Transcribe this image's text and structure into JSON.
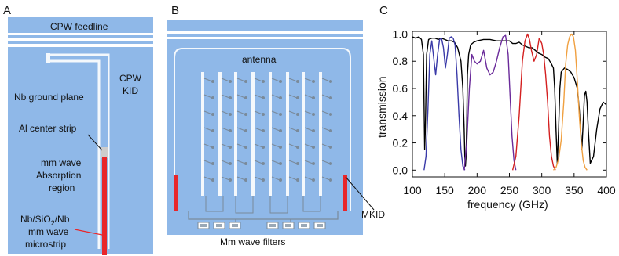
{
  "panels": {
    "a": {
      "letter": "A",
      "feedline": "CPW feedline",
      "cpw_kid_line1": "CPW",
      "cpw_kid_line2": "KID",
      "ground_plane": "Nb ground plane",
      "center_strip": "Al center strip",
      "absorption_line1": "mm wave",
      "absorption_line2": "Absorption",
      "absorption_line3": "region",
      "microstrip_line1": "Nb/SiO",
      "microstrip_sub": "2",
      "microstrip_line1_end": "/Nb",
      "microstrip_line2": "mm wave",
      "microstrip_line3": "microstrip"
    },
    "b": {
      "letter": "B",
      "antenna": "antenna",
      "mkid": "MKID",
      "filters": "Mm wave filters"
    },
    "c": {
      "letter": "C"
    }
  },
  "colors": {
    "substrate": "#8fb8e8",
    "metal_light": "#a9c9ef",
    "trace": "#f4f8fc",
    "strip_red": "#e8262a",
    "blue_band": "#3a3aa8",
    "purple_band": "#6a2a9a",
    "red_band": "#d42020",
    "orange_band": "#f0a040",
    "atm": "#000000"
  },
  "chart_data": {
    "type": "line",
    "xlabel": "frequency (GHz)",
    "ylabel": "transmission",
    "xlim": [
      100,
      400
    ],
    "ylim": [
      -0.05,
      1.02
    ],
    "xticks": [
      100,
      150,
      200,
      250,
      300,
      350,
      400
    ],
    "yticks": [
      0.0,
      0.2,
      0.4,
      0.6,
      0.8,
      1.0
    ],
    "ytick_labels": [
      "0.0",
      "0.2",
      "0.4",
      "0.6",
      "0.8",
      "1.0"
    ],
    "grid": false,
    "series": [
      {
        "color": "#000000",
        "x": [
          100,
          105,
          110,
          114,
          117,
          118,
          119,
          120,
          122,
          125,
          130,
          135,
          140,
          145,
          150,
          155,
          160,
          165,
          170,
          175,
          178,
          180,
          181,
          182,
          183,
          184,
          185,
          187,
          190,
          195,
          200,
          210,
          220,
          230,
          240,
          250,
          255,
          260,
          265,
          270,
          275,
          280,
          285,
          290,
          295,
          300,
          305,
          310,
          315,
          318,
          320,
          322,
          324,
          326,
          328,
          330,
          335,
          340,
          345,
          350,
          355,
          358,
          360,
          362,
          364,
          366,
          368,
          370,
          372,
          375,
          380,
          385,
          390,
          395,
          400
        ],
        "y": [
          0.98,
          0.97,
          0.98,
          0.96,
          0.85,
          0.5,
          0.15,
          0.3,
          0.85,
          0.96,
          0.97,
          0.97,
          0.96,
          0.97,
          0.96,
          0.95,
          0.95,
          0.94,
          0.9,
          0.8,
          0.6,
          0.3,
          0.1,
          0.03,
          0.1,
          0.35,
          0.7,
          0.85,
          0.92,
          0.94,
          0.95,
          0.96,
          0.96,
          0.95,
          0.95,
          0.95,
          0.93,
          0.93,
          0.94,
          0.92,
          0.91,
          0.9,
          0.9,
          0.88,
          0.86,
          0.85,
          0.83,
          0.82,
          0.78,
          0.75,
          0.6,
          0.3,
          0.05,
          0.3,
          0.6,
          0.72,
          0.75,
          0.74,
          0.72,
          0.68,
          0.6,
          0.45,
          0.3,
          0.15,
          0.35,
          0.55,
          0.58,
          0.5,
          0.3,
          0.05,
          0.1,
          0.3,
          0.45,
          0.5,
          0.48
        ]
      },
      {
        "color": "#3a3aa8",
        "x": [
          118,
          121,
          124,
          127,
          130,
          133,
          136,
          139,
          142,
          145,
          148,
          151,
          154,
          157,
          160,
          163,
          166,
          169,
          172,
          175,
          178,
          181
        ],
        "y": [
          0.0,
          0.1,
          0.45,
          0.85,
          0.95,
          0.82,
          0.7,
          0.85,
          0.96,
          0.97,
          0.9,
          0.75,
          0.85,
          0.97,
          0.98,
          0.97,
          0.92,
          0.7,
          0.4,
          0.15,
          0.03,
          0.0
        ]
      },
      {
        "color": "#6a2a9a",
        "x": [
          180,
          184,
          188,
          192,
          196,
          200,
          205,
          210,
          215,
          220,
          225,
          230,
          235,
          240,
          244,
          248,
          251,
          254,
          257,
          260
        ],
        "y": [
          0.0,
          0.2,
          0.6,
          0.85,
          0.8,
          0.78,
          0.8,
          0.88,
          0.75,
          0.7,
          0.72,
          0.8,
          0.9,
          0.98,
          0.99,
          0.85,
          0.55,
          0.25,
          0.07,
          0.0
        ]
      },
      {
        "color": "#d42020",
        "x": [
          255,
          260,
          265,
          270,
          274,
          278,
          281,
          284,
          288,
          292,
          296,
          300,
          303,
          306,
          309,
          312,
          315,
          318,
          321
        ],
        "y": [
          0.0,
          0.1,
          0.4,
          0.8,
          0.95,
          1.0,
          0.96,
          0.88,
          0.8,
          0.85,
          0.97,
          0.93,
          0.85,
          0.7,
          0.5,
          0.25,
          0.1,
          0.03,
          0.0
        ]
      },
      {
        "color": "#f0a040",
        "x": [
          318,
          322,
          326,
          330,
          334,
          337,
          340,
          343,
          346,
          349,
          352,
          355,
          358,
          361,
          364,
          367,
          370
        ],
        "y": [
          0.0,
          0.02,
          0.08,
          0.22,
          0.5,
          0.78,
          0.92,
          0.98,
          1.0,
          0.98,
          0.88,
          0.65,
          0.4,
          0.2,
          0.07,
          0.02,
          0.0
        ]
      }
    ]
  }
}
